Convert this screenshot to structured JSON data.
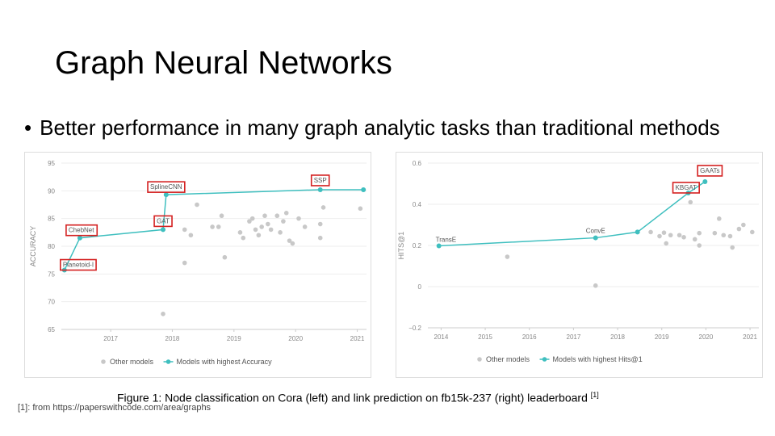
{
  "slide": {
    "title": "Graph Neural Networks",
    "bullet": "Better performance in many graph analytic tasks than traditional methods",
    "bullet_marker": "•",
    "caption": "Figure 1: Node classification on Cora (left) and link prediction on fb15k-237 (right) leaderboard ",
    "caption_ref": "[1]",
    "footnote": "[1]: from https://paperswithcode.com/area/graphs"
  },
  "colors": {
    "best": "#3fbfbf",
    "other": "#c8c8c8",
    "highlight": "#d42020",
    "axis": "#888888",
    "grid": "#eeeeee"
  },
  "chart_data": [
    {
      "type": "line",
      "ylabel": "ACCURACY",
      "xlim": [
        2016.2,
        2021.15
      ],
      "ylim": [
        65,
        95
      ],
      "xticks": [
        2017,
        2018,
        2019,
        2020,
        2021
      ],
      "yticks": [
        65,
        70,
        75,
        80,
        85,
        90,
        95
      ],
      "legend": {
        "position": "bottom",
        "entries": [
          "Other models",
          "Models with highest Accuracy"
        ]
      },
      "best_series": {
        "name": "Models with highest Accuracy",
        "points": [
          {
            "x": 2016.25,
            "y": 75.7,
            "label": "Planetoid-I"
          },
          {
            "x": 2016.5,
            "y": 81.5,
            "label": "ChebNet"
          },
          {
            "x": 2017.85,
            "y": 83.0,
            "label": "GAT"
          },
          {
            "x": 2017.9,
            "y": 89.3,
            "label": "SplineCNN"
          },
          {
            "x": 2020.4,
            "y": 90.2,
            "label": "SSP"
          },
          {
            "x": 2021.1,
            "y": 90.2,
            "label": ""
          }
        ]
      },
      "other_models": [
        {
          "x": 2018.4,
          "y": 87.5
        },
        {
          "x": 2018.2,
          "y": 83.0
        },
        {
          "x": 2018.3,
          "y": 82.0
        },
        {
          "x": 2018.2,
          "y": 77.0
        },
        {
          "x": 2017.85,
          "y": 67.8
        },
        {
          "x": 2018.65,
          "y": 83.5
        },
        {
          "x": 2018.75,
          "y": 83.5
        },
        {
          "x": 2018.8,
          "y": 85.5
        },
        {
          "x": 2018.85,
          "y": 78.0
        },
        {
          "x": 2019.1,
          "y": 82.5
        },
        {
          "x": 2019.15,
          "y": 81.5
        },
        {
          "x": 2019.25,
          "y": 84.5
        },
        {
          "x": 2019.3,
          "y": 85.0
        },
        {
          "x": 2019.35,
          "y": 83.0
        },
        {
          "x": 2019.4,
          "y": 82.0
        },
        {
          "x": 2019.45,
          "y": 83.5
        },
        {
          "x": 2019.5,
          "y": 85.5
        },
        {
          "x": 2019.55,
          "y": 84.0
        },
        {
          "x": 2019.6,
          "y": 83.0
        },
        {
          "x": 2019.7,
          "y": 85.5
        },
        {
          "x": 2019.75,
          "y": 82.5
        },
        {
          "x": 2019.8,
          "y": 84.5
        },
        {
          "x": 2019.85,
          "y": 86.0
        },
        {
          "x": 2019.9,
          "y": 81.0
        },
        {
          "x": 2019.95,
          "y": 80.5
        },
        {
          "x": 2020.05,
          "y": 85.0
        },
        {
          "x": 2020.15,
          "y": 83.5
        },
        {
          "x": 2020.45,
          "y": 87.0
        },
        {
          "x": 2020.4,
          "y": 84.0
        },
        {
          "x": 2020.4,
          "y": 81.5
        },
        {
          "x": 2021.05,
          "y": 86.8
        }
      ]
    },
    {
      "type": "line",
      "ylabel": "HITS@1",
      "xlim": [
        2013.7,
        2021.2
      ],
      "ylim": [
        -0.2,
        0.6
      ],
      "xticks": [
        2014,
        2015,
        2016,
        2017,
        2018,
        2019,
        2020,
        2021
      ],
      "yticks": [
        -0.2,
        0,
        0.2,
        0.4,
        0.6
      ],
      "legend": {
        "position": "bottom",
        "entries": [
          "Other models",
          "Models with highest Hits@1"
        ]
      },
      "best_series": {
        "name": "Models with highest Hits@1",
        "points": [
          {
            "x": 2013.95,
            "y": 0.198,
            "label": "TransE"
          },
          {
            "x": 2017.5,
            "y": 0.237,
            "label": "ConvE"
          },
          {
            "x": 2018.45,
            "y": 0.265,
            "label": ""
          },
          {
            "x": 2019.6,
            "y": 0.455,
            "label": "KBGAT"
          },
          {
            "x": 2019.98,
            "y": 0.51,
            "label": "GAATs"
          }
        ]
      },
      "other_models": [
        {
          "x": 2015.5,
          "y": 0.145
        },
        {
          "x": 2017.5,
          "y": 0.005
        },
        {
          "x": 2018.75,
          "y": 0.265
        },
        {
          "x": 2018.95,
          "y": 0.245
        },
        {
          "x": 2019.05,
          "y": 0.262
        },
        {
          "x": 2019.1,
          "y": 0.21
        },
        {
          "x": 2019.2,
          "y": 0.25
        },
        {
          "x": 2019.4,
          "y": 0.25
        },
        {
          "x": 2019.5,
          "y": 0.24
        },
        {
          "x": 2019.65,
          "y": 0.41
        },
        {
          "x": 2019.75,
          "y": 0.23
        },
        {
          "x": 2019.85,
          "y": 0.26
        },
        {
          "x": 2019.85,
          "y": 0.2
        },
        {
          "x": 2020.2,
          "y": 0.26
        },
        {
          "x": 2020.3,
          "y": 0.33
        },
        {
          "x": 2020.4,
          "y": 0.25
        },
        {
          "x": 2020.55,
          "y": 0.245
        },
        {
          "x": 2020.6,
          "y": 0.19
        },
        {
          "x": 2020.85,
          "y": 0.3
        },
        {
          "x": 2021.05,
          "y": 0.265
        },
        {
          "x": 2020.75,
          "y": 0.28
        }
      ]
    }
  ]
}
